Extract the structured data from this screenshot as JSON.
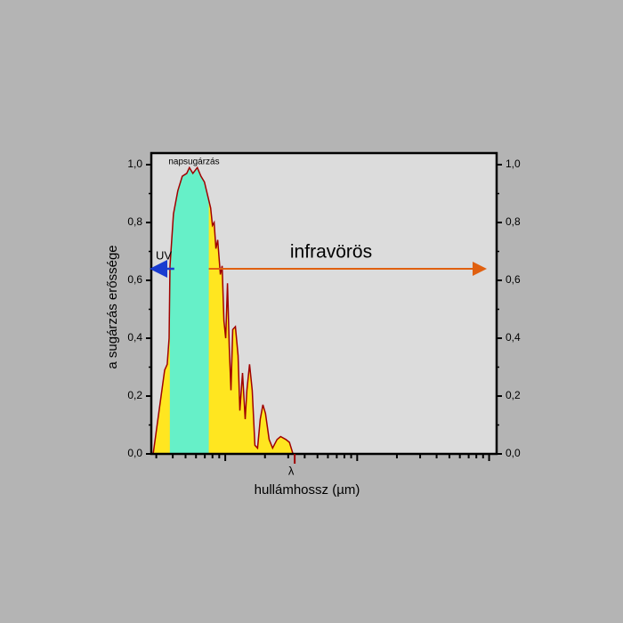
{
  "chart_data": {
    "type": "area",
    "title": "napsugárzás",
    "y_label": "a sugárzás erőssége",
    "x_label": "hullámhossz (µm)",
    "log_x": true,
    "x": [
      0.284,
      0.347,
      0.363,
      0.375,
      0.381,
      0.405,
      0.437,
      0.472,
      0.51,
      0.535,
      0.568,
      0.614,
      0.654,
      0.695,
      0.739,
      0.775,
      0.799,
      0.824,
      0.85,
      0.876,
      0.918,
      0.947,
      0.977,
      1.007,
      1.039,
      1.072,
      1.105,
      1.14,
      1.194,
      1.251,
      1.29,
      1.351,
      1.415,
      1.459,
      1.529,
      1.602,
      1.678,
      1.758,
      1.841,
      1.928,
      2.019,
      2.149,
      2.285,
      2.47,
      2.627,
      2.881,
      3.064,
      3.261
    ],
    "values": [
      0,
      0.29,
      0.31,
      0.4,
      0.65,
      0.83,
      0.91,
      0.96,
      0.97,
      0.99,
      0.97,
      0.99,
      0.96,
      0.94,
      0.89,
      0.85,
      0.79,
      0.8,
      0.71,
      0.74,
      0.62,
      0.65,
      0.46,
      0.4,
      0.59,
      0.37,
      0.22,
      0.43,
      0.44,
      0.34,
      0.15,
      0.28,
      0.12,
      0.22,
      0.31,
      0.22,
      0.03,
      0.02,
      0.12,
      0.17,
      0.14,
      0.05,
      0.02,
      0.05,
      0.06,
      0.05,
      0.04,
      0
    ],
    "color": "#ffe620",
    "line_color": "#a00000",
    "visible_band": {
      "range": [
        0.38,
        0.75
      ],
      "color": "#66f0c8"
    },
    "annotations": [
      {
        "text": "UV",
        "color": "#1a3cd0"
      },
      {
        "text": "infravörös",
        "color": "#e06010"
      }
    ],
    "marker": {
      "label": "λ",
      "x": 3.36,
      "color": "#a00000"
    },
    "xlim": [
      0.275,
      114
    ],
    "xticks": [
      0.3,
      0.4,
      0.5,
      0.6,
      0.7,
      0.8,
      0.9,
      1,
      2,
      3,
      4,
      5,
      6,
      7,
      8,
      9,
      10,
      20,
      30,
      40,
      50,
      60,
      70,
      80,
      90,
      100
    ],
    "ylim": [
      0,
      1.04
    ],
    "yticks": [
      {
        "value": 0,
        "label": "0,0"
      },
      {
        "value": 0.2,
        "label": "0,2"
      },
      {
        "value": 0.4,
        "label": "0,4"
      },
      {
        "value": 0.6,
        "label": "0,6"
      },
      {
        "value": 0.8,
        "label": "0,8"
      },
      {
        "value": 1,
        "label": "1,0"
      }
    ],
    "background": "#dcdcdc"
  }
}
